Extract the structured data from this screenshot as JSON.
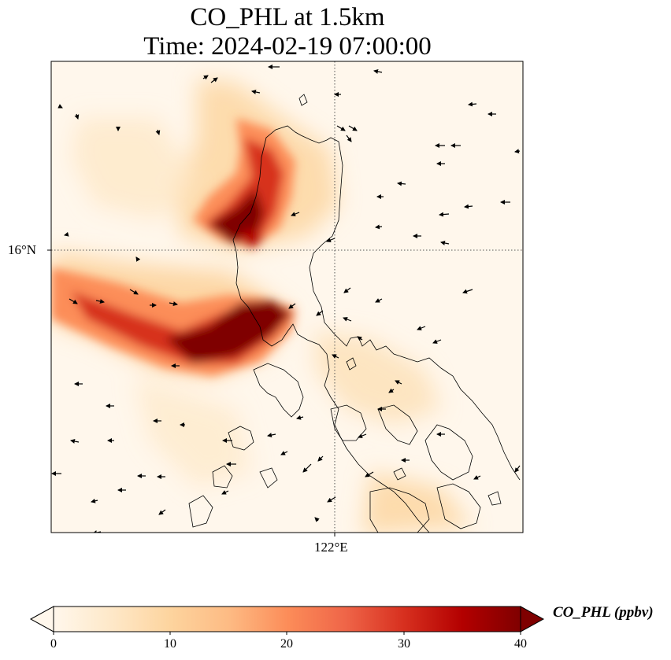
{
  "title": {
    "line1": "CO_PHL at 1.5km",
    "line2": "Time: 2024-02-19 07:00:00"
  },
  "map": {
    "lat_label": "16°N",
    "lon_label": "122°E",
    "colormap": "OrRd",
    "gridlines": "dotted"
  },
  "colorbar": {
    "label": "CO_PHL (ppbv)",
    "min": 0,
    "max": 40,
    "ticks": [
      "0",
      "10",
      "20",
      "30",
      "40"
    ],
    "extend": "both",
    "colors": [
      "#fff7ec",
      "#fee8c8",
      "#fdd49e",
      "#fdbb84",
      "#fc8d59",
      "#ef6548",
      "#d7301f",
      "#b30000",
      "#7f0000"
    ]
  }
}
